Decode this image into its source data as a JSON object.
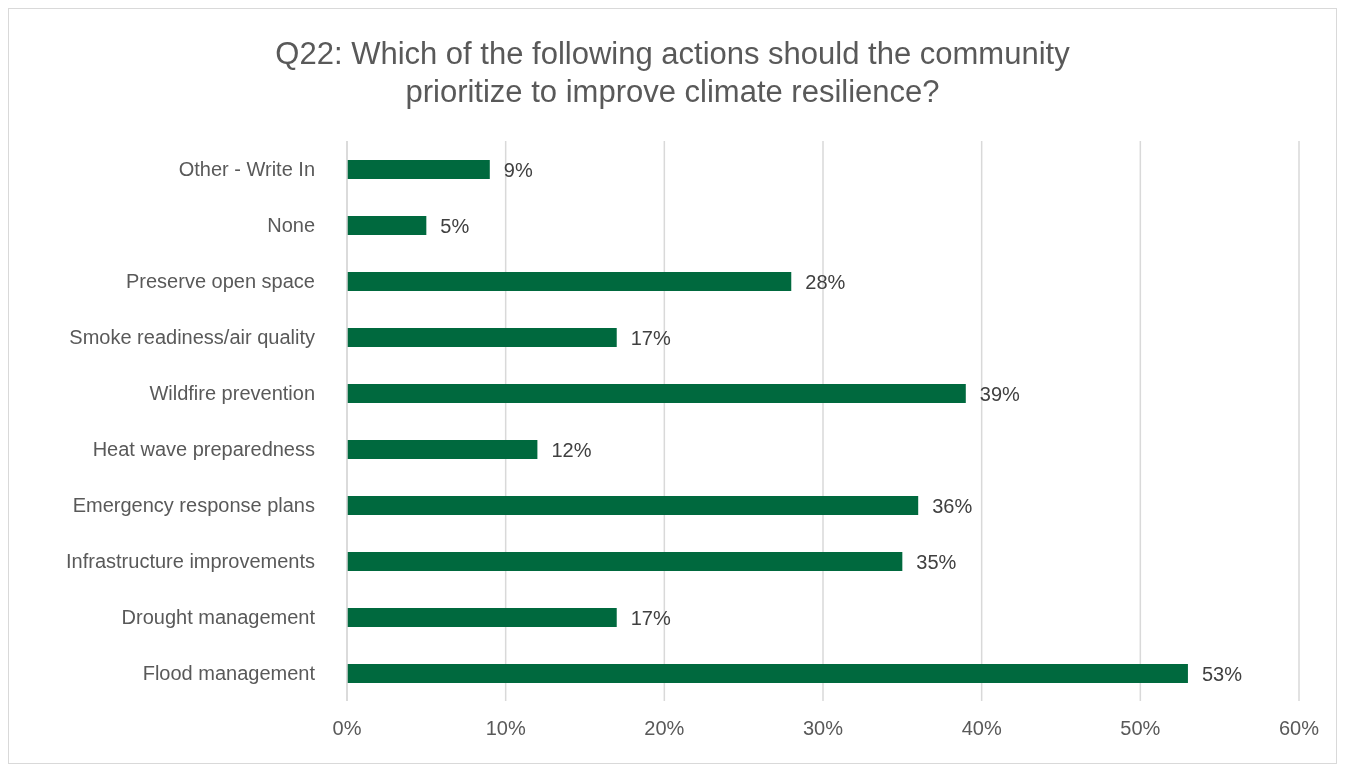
{
  "chart_data": {
    "type": "bar",
    "orientation": "horizontal",
    "title": "Q22: Which of the following actions should the community prioritize to improve climate resilience?",
    "categories": [
      "Other - Write In",
      "None",
      "Preserve open space",
      "Smoke readiness/air quality",
      "Wildfire prevention",
      "Heat wave preparedness",
      "Emergency response plans",
      "Infrastructure improvements",
      "Drought management",
      "Flood management"
    ],
    "values": [
      9,
      5,
      28,
      17,
      39,
      12,
      36,
      35,
      17,
      53
    ],
    "value_labels": [
      "9%",
      "5%",
      "28%",
      "17%",
      "39%",
      "12%",
      "36%",
      "35%",
      "17%",
      "53%"
    ],
    "color": "#00693e",
    "xlim": [
      0,
      60
    ],
    "xticks": [
      {
        "value": 0,
        "label": "0%"
      },
      {
        "value": 10,
        "label": "10%"
      },
      {
        "value": 20,
        "label": "20%"
      },
      {
        "value": 30,
        "label": "30%"
      },
      {
        "value": 40,
        "label": "40%"
      },
      {
        "value": 50,
        "label": "50%"
      },
      {
        "value": 60,
        "label": "60%"
      }
    ],
    "grid": "x",
    "legend": false
  }
}
